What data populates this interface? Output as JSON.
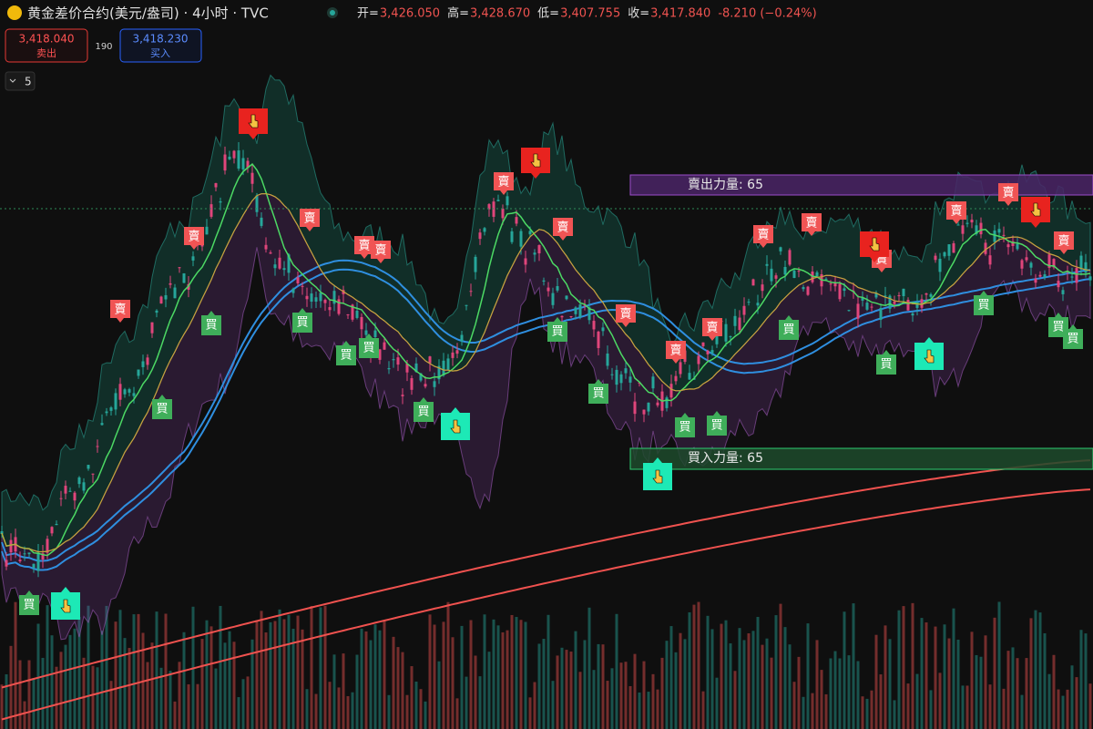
{
  "header": {
    "title": "黄金差价合约(美元/盎司) · 4小时 · TVC",
    "ohlc": [
      {
        "label": "开=",
        "value": "3,426.050"
      },
      {
        "label": "高=",
        "value": "3,428.670"
      },
      {
        "label": "低=",
        "value": "3,407.755"
      },
      {
        "label": "收=",
        "value": "3,417.840"
      }
    ],
    "change": "-8.210 (−0.24%)"
  },
  "trade": {
    "sell": {
      "price": "3,418.040",
      "label": "卖出"
    },
    "spread": "190",
    "buy": {
      "price": "3,418.230",
      "label": "买入"
    }
  },
  "indicator_toggle": "5",
  "zones": {
    "sell": "賣出力量: 65",
    "buy": "買入力量: 65"
  },
  "signals": {
    "sell": "賣",
    "buy": "買"
  }
}
